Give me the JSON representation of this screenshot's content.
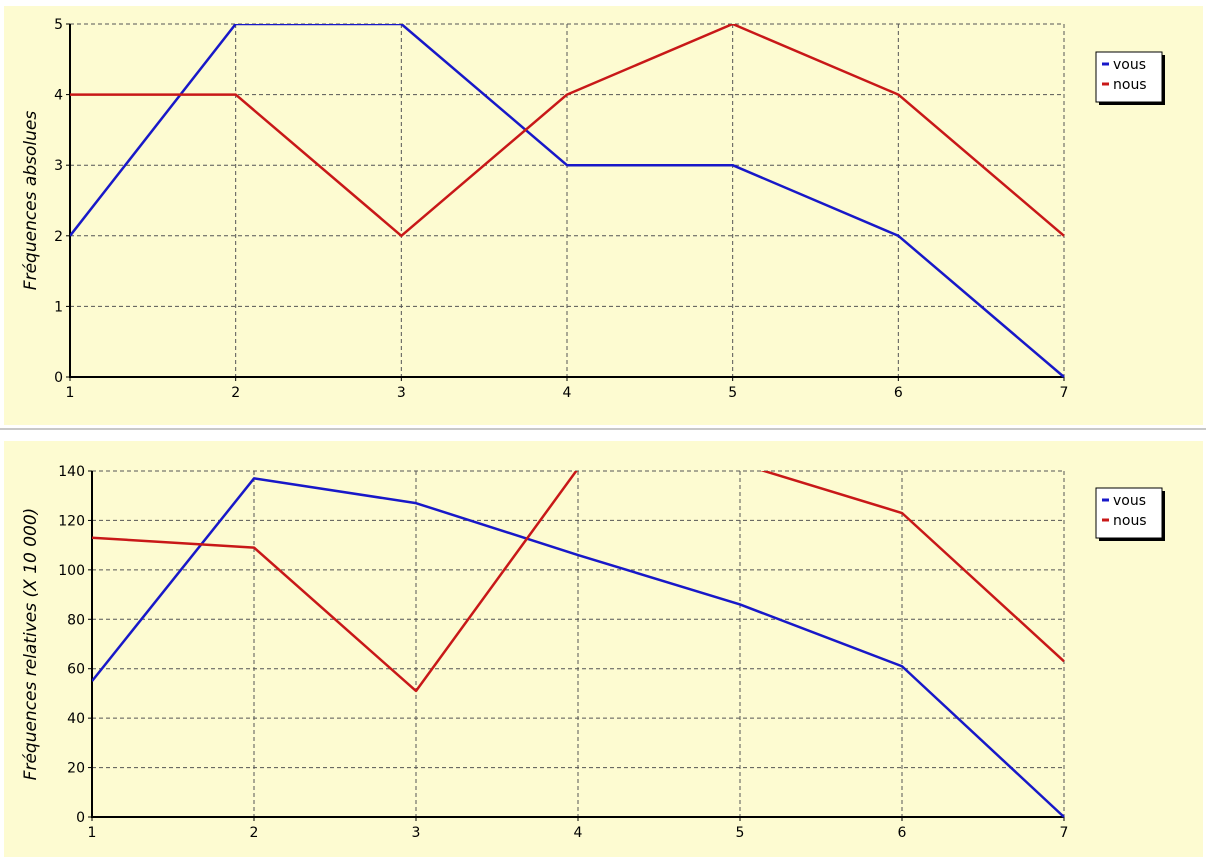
{
  "colors": {
    "background": "#fdfbd1",
    "vous": "#1818c8",
    "nous": "#c81818",
    "grid": "#555555"
  },
  "chart_data": [
    {
      "type": "line",
      "ylabel": "Fréquences absolues",
      "xlabel": "",
      "x": [
        1,
        2,
        3,
        4,
        5,
        6,
        7
      ],
      "xlim": [
        1,
        7
      ],
      "ylim": [
        0,
        5
      ],
      "yticks": [
        0,
        1,
        2,
        3,
        4,
        5
      ],
      "grid": true,
      "legend_position": "right",
      "series": [
        {
          "name": "vous",
          "color": "#1818c8",
          "values": [
            2,
            5,
            5,
            3,
            3,
            2,
            0
          ]
        },
        {
          "name": "nous",
          "color": "#c81818",
          "values": [
            4,
            4,
            2,
            4,
            5,
            4,
            2
          ]
        }
      ]
    },
    {
      "type": "line",
      "ylabel": "Fréquences relatives (X 10 000)",
      "xlabel": "",
      "x": [
        1,
        2,
        3,
        4,
        5,
        6,
        7
      ],
      "xlim": [
        1,
        7
      ],
      "ylim": [
        0,
        140
      ],
      "yticks": [
        0,
        20,
        40,
        60,
        80,
        100,
        120,
        140
      ],
      "grid": true,
      "legend_position": "right",
      "series": [
        {
          "name": "vous",
          "color": "#1818c8",
          "values": [
            55,
            137,
            127,
            106,
            86,
            61,
            0
          ]
        },
        {
          "name": "nous",
          "color": "#c81818",
          "values": [
            113,
            109,
            51,
            141,
            143,
            123,
            63
          ]
        }
      ]
    }
  ]
}
